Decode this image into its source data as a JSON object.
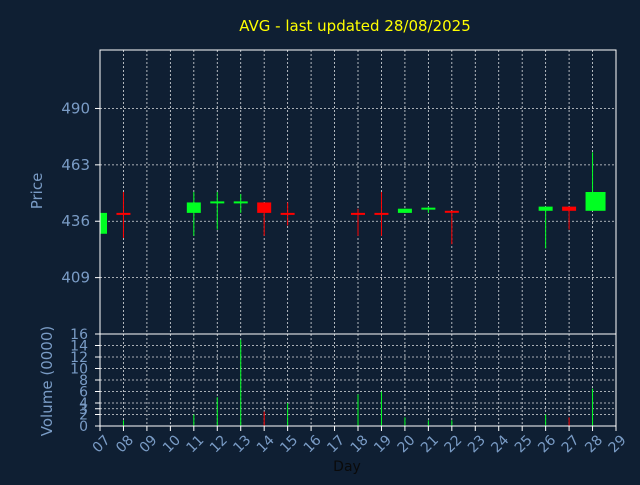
{
  "chart_data": [
    {
      "type": "candlestick",
      "title": "AVG - last updated 28/08/2025",
      "ylabel": "Price",
      "ylim": [
        382,
        518
      ],
      "yticks": [
        409,
        436,
        463,
        490
      ],
      "x_dates": [
        "07",
        "08",
        "09",
        "10",
        "11",
        "12",
        "13",
        "14",
        "15",
        "16",
        "17",
        "18",
        "19",
        "20",
        "21",
        "22",
        "23",
        "24",
        "25",
        "26",
        "27",
        "28",
        "29"
      ],
      "xlim": [
        7,
        29
      ],
      "colors": {
        "up": "#00ff22",
        "down": "#ff0000",
        "title": "#ffff00",
        "axis": "#7a9cc6",
        "background": "#0f1f33"
      },
      "candles": [
        {
          "day": 7,
          "open": 430,
          "high": 440,
          "low": 430,
          "close": 440
        },
        {
          "day": 8,
          "open": 440,
          "high": 450,
          "low": 428,
          "close": 439.5
        },
        {
          "day": 11,
          "open": 440,
          "high": 450,
          "low": 429,
          "close": 445
        },
        {
          "day": 12,
          "open": 445,
          "high": 450,
          "low": 432,
          "close": 445.5
        },
        {
          "day": 13,
          "open": 445,
          "high": 449,
          "low": 440,
          "close": 445.5
        },
        {
          "day": 14,
          "open": 445,
          "high": 445,
          "low": 429,
          "close": 440
        },
        {
          "day": 15,
          "open": 440,
          "high": 445,
          "low": 434,
          "close": 439.5
        },
        {
          "day": 18,
          "open": 440,
          "high": 442,
          "low": 429,
          "close": 439.5
        },
        {
          "day": 19,
          "open": 440,
          "high": 450,
          "low": 429,
          "close": 439.5
        },
        {
          "day": 20,
          "open": 440,
          "high": 442,
          "low": 440,
          "close": 442
        },
        {
          "day": 21,
          "open": 442,
          "high": 443,
          "low": 440,
          "close": 442.5
        },
        {
          "day": 22,
          "open": 441,
          "high": 441,
          "low": 425,
          "close": 440.5
        },
        {
          "day": 26,
          "open": 441,
          "high": 443,
          "low": 423,
          "close": 443
        },
        {
          "day": 27,
          "open": 443,
          "high": 443,
          "low": 432,
          "close": 441
        },
        {
          "day": 28,
          "open": 441,
          "high": 469,
          "low": 441,
          "close": 450
        }
      ]
    },
    {
      "type": "bar",
      "ylabel": "Volume (0000)",
      "xlabel": "Day",
      "ylim": [
        0,
        16
      ],
      "yticks": [
        0,
        2,
        3,
        4,
        6,
        8,
        10,
        12,
        14,
        16
      ],
      "x_dates": [
        "07",
        "08",
        "09",
        "10",
        "11",
        "12",
        "13",
        "14",
        "15",
        "16",
        "17",
        "18",
        "19",
        "20",
        "21",
        "22",
        "23",
        "24",
        "25",
        "26",
        "27",
        "28",
        "29"
      ],
      "xlim": [
        7,
        29
      ],
      "bars": [
        {
          "day": 7,
          "value": 0.3,
          "dir": "up"
        },
        {
          "day": 8,
          "value": 1.0,
          "dir": "up"
        },
        {
          "day": 11,
          "value": 2.0,
          "dir": "up"
        },
        {
          "day": 12,
          "value": 5.0,
          "dir": "up"
        },
        {
          "day": 13,
          "value": 15.0,
          "dir": "up"
        },
        {
          "day": 14,
          "value": 2.5,
          "dir": "down"
        },
        {
          "day": 15,
          "value": 4.0,
          "dir": "up"
        },
        {
          "day": 18,
          "value": 5.5,
          "dir": "up"
        },
        {
          "day": 19,
          "value": 6.0,
          "dir": "up"
        },
        {
          "day": 20,
          "value": 1.5,
          "dir": "up"
        },
        {
          "day": 21,
          "value": 1.0,
          "dir": "up"
        },
        {
          "day": 22,
          "value": 1.0,
          "dir": "up"
        },
        {
          "day": 26,
          "value": 2.0,
          "dir": "up"
        },
        {
          "day": 27,
          "value": 1.5,
          "dir": "down"
        },
        {
          "day": 28,
          "value": 6.5,
          "dir": "up"
        }
      ]
    }
  ]
}
